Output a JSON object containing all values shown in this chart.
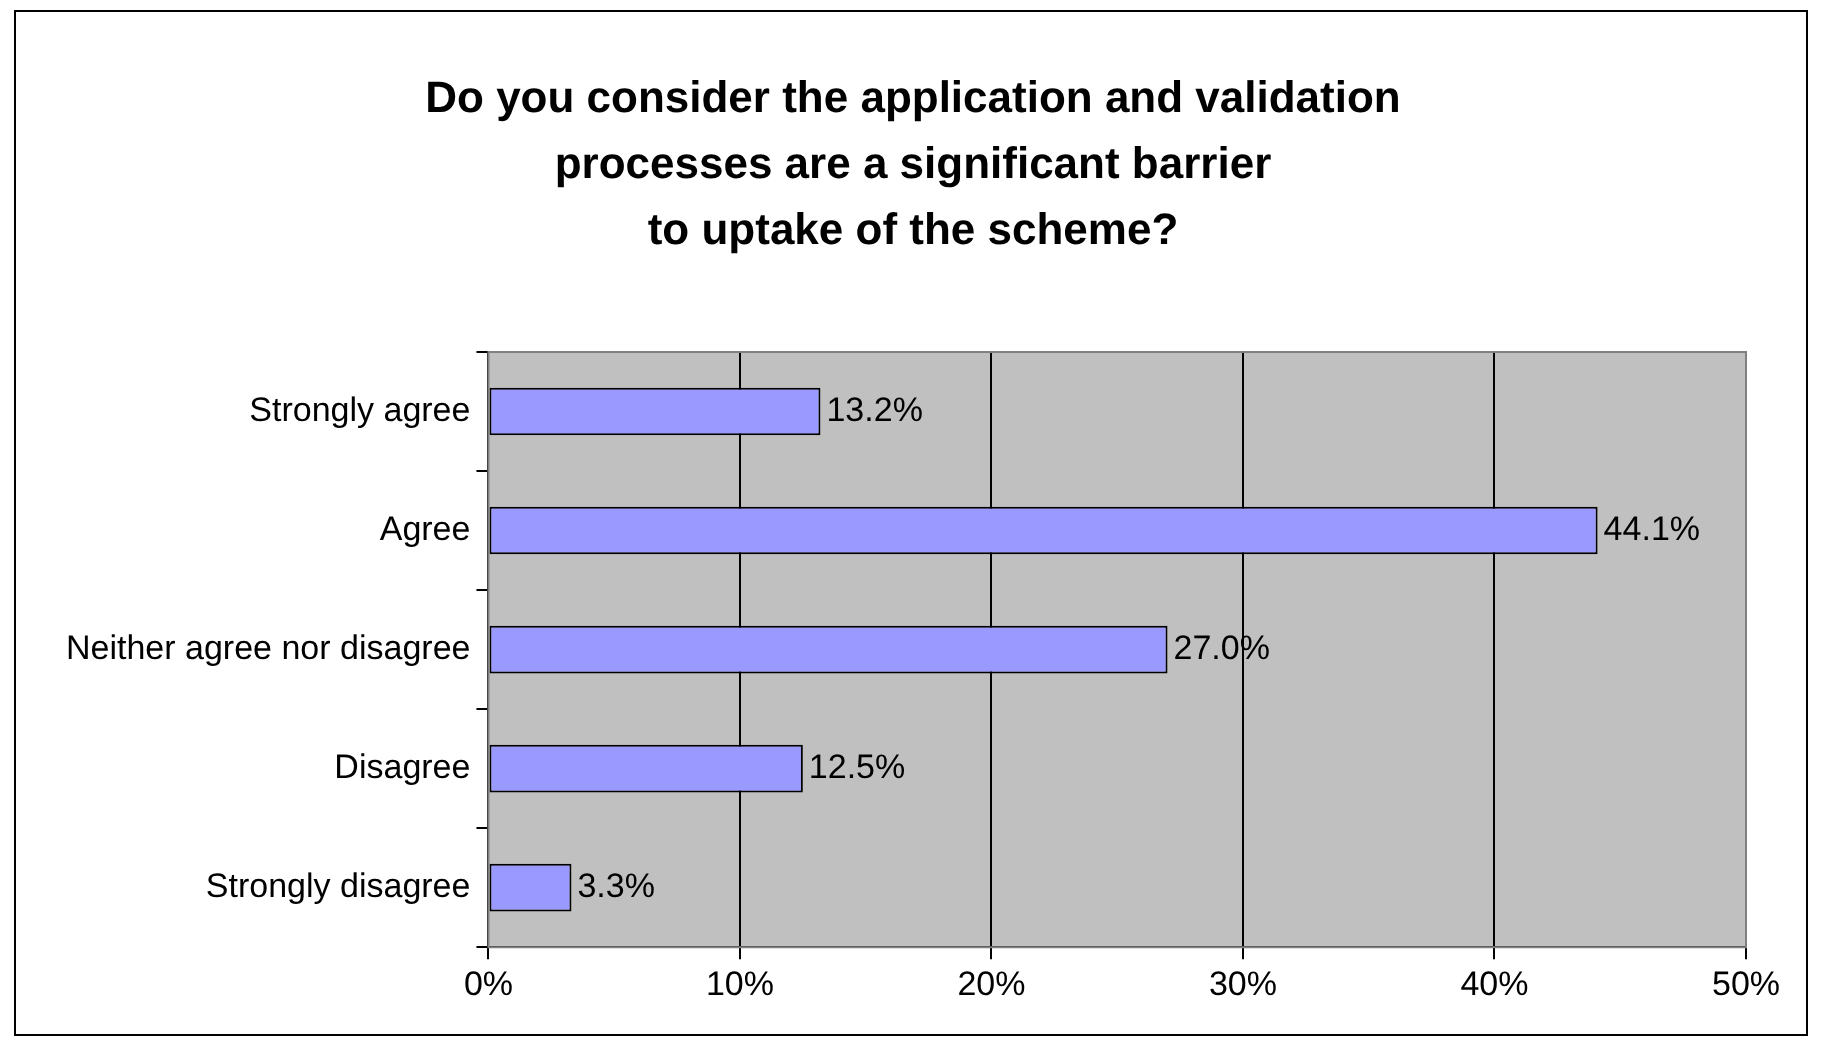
{
  "chart_data": {
    "type": "bar",
    "orientation": "horizontal",
    "title": "Do you consider the application and validation\nprocesses are a significant barrier\nto uptake of the scheme?",
    "categories": [
      "Strongly agree",
      "Agree",
      "Neither agree nor disagree",
      "Disagree",
      "Strongly disagree"
    ],
    "values": [
      13.2,
      44.1,
      27.0,
      12.5,
      3.3
    ],
    "value_labels": [
      "13.2%",
      "44.1%",
      "27.0%",
      "12.5%",
      "3.3%"
    ],
    "color": "#9999ff",
    "xlim": [
      0,
      50
    ],
    "xticks": [
      {
        "value": 0,
        "label": "0%"
      },
      {
        "value": 10,
        "label": "10%"
      },
      {
        "value": 20,
        "label": "20%"
      },
      {
        "value": 30,
        "label": "30%"
      },
      {
        "value": 40,
        "label": "40%"
      },
      {
        "value": 50,
        "label": "50%"
      }
    ],
    "grid": "x",
    "legend": false
  }
}
